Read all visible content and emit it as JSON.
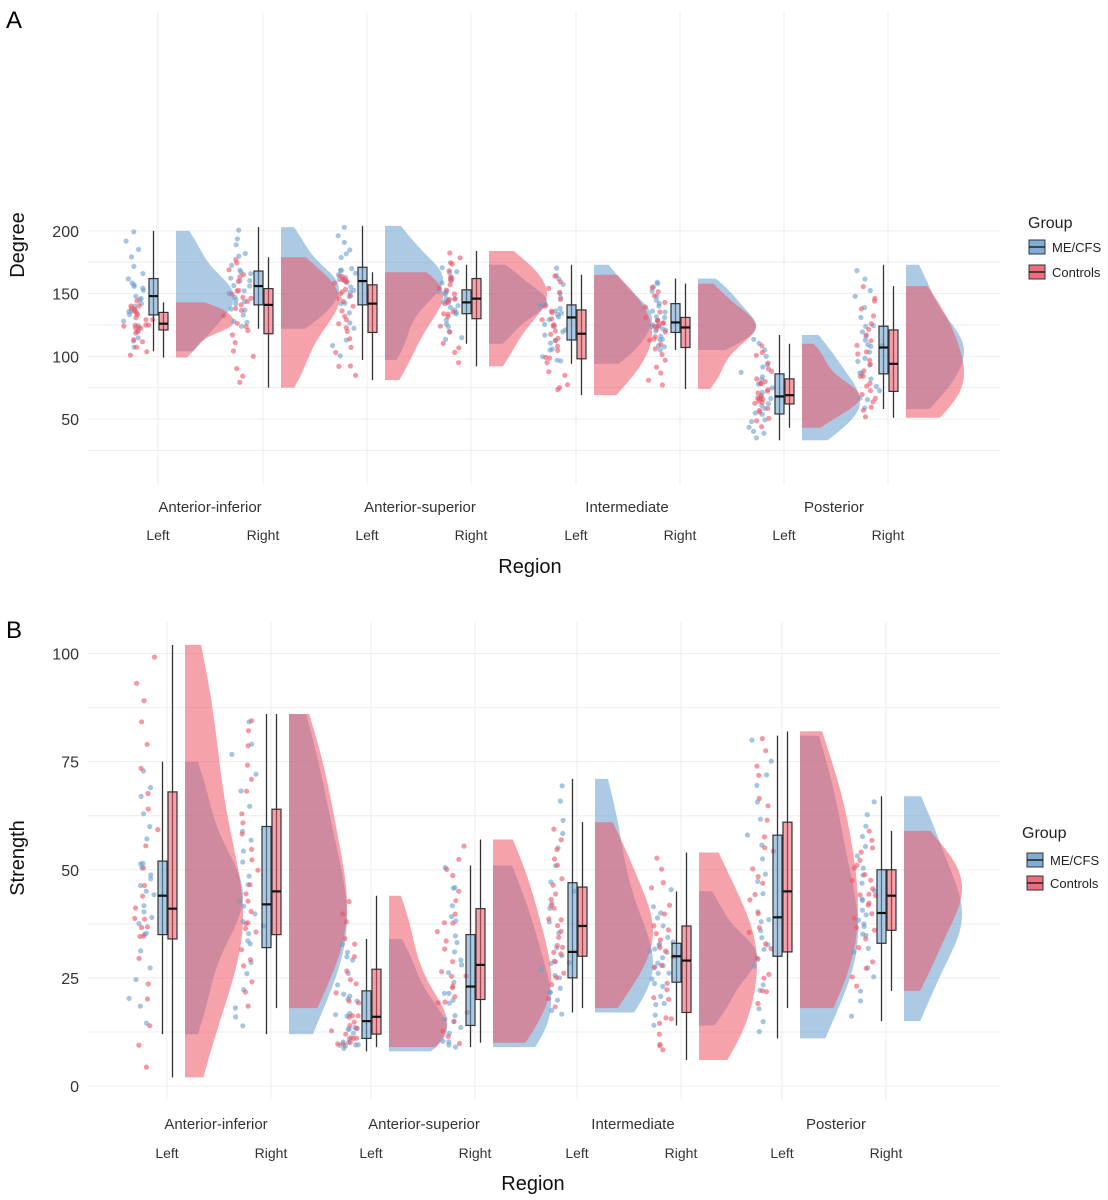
{
  "figure": {
    "legend_title": "Group",
    "group_names": [
      "ME/CFS",
      "Controls"
    ],
    "colors": {
      "ME/CFS": "#6a9fcf",
      "Controls": "#ec5566",
      "overlap": "#7a5a8c",
      "grid": "#e6e6e6"
    }
  },
  "chart_data": [
    {
      "panel_label": "A",
      "type": "raincloud",
      "ylabel": "Degree",
      "xlabel": "Region",
      "ylim": [
        30,
        210
      ],
      "yticks": [
        50,
        100,
        150,
        200
      ],
      "regions": [
        "Anterior-inferior",
        "Anterior-superior",
        "Intermediate",
        "Posterior"
      ],
      "sides": [
        "Left",
        "Right"
      ],
      "series": [
        {
          "name": "ME/CFS",
          "boxes": [
            {
              "region": "Anterior-inferior",
              "side": "Left",
              "min": 104,
              "q1": 133,
              "median": 148,
              "q3": 162,
              "max": 200
            },
            {
              "region": "Anterior-inferior",
              "side": "Right",
              "min": 122,
              "q1": 141,
              "median": 156,
              "q3": 168,
              "max": 203
            },
            {
              "region": "Anterior-superior",
              "side": "Left",
              "min": 97,
              "q1": 141,
              "median": 160,
              "q3": 171,
              "max": 204
            },
            {
              "region": "Anterior-superior",
              "side": "Right",
              "min": 110,
              "q1": 134,
              "median": 143,
              "q3": 153,
              "max": 173
            },
            {
              "region": "Intermediate",
              "side": "Left",
              "min": 94,
              "q1": 113,
              "median": 131,
              "q3": 141,
              "max": 173
            },
            {
              "region": "Intermediate",
              "side": "Right",
              "min": 105,
              "q1": 119,
              "median": 127,
              "q3": 142,
              "max": 162
            },
            {
              "region": "Posterior",
              "side": "Left",
              "min": 33,
              "q1": 54,
              "median": 68,
              "q3": 86,
              "max": 117
            },
            {
              "region": "Posterior",
              "side": "Right",
              "min": 58,
              "q1": 86,
              "median": 107,
              "q3": 124,
              "max": 173
            }
          ]
        },
        {
          "name": "Controls",
          "boxes": [
            {
              "region": "Anterior-inferior",
              "side": "Left",
              "min": 99,
              "q1": 121,
              "median": 126,
              "q3": 135,
              "max": 143
            },
            {
              "region": "Anterior-inferior",
              "side": "Right",
              "min": 75,
              "q1": 118,
              "median": 141,
              "q3": 154,
              "max": 179
            },
            {
              "region": "Anterior-superior",
              "side": "Left",
              "min": 81,
              "q1": 119,
              "median": 142,
              "q3": 157,
              "max": 167
            },
            {
              "region": "Anterior-superior",
              "side": "Right",
              "min": 92,
              "q1": 130,
              "median": 146,
              "q3": 162,
              "max": 184
            },
            {
              "region": "Intermediate",
              "side": "Left",
              "min": 69,
              "q1": 98,
              "median": 118,
              "q3": 137,
              "max": 165
            },
            {
              "region": "Intermediate",
              "side": "Right",
              "min": 74,
              "q1": 107,
              "median": 123,
              "q3": 131,
              "max": 158
            },
            {
              "region": "Posterior",
              "side": "Left",
              "min": 43,
              "q1": 62,
              "median": 69,
              "q3": 82,
              "max": 110
            },
            {
              "region": "Posterior",
              "side": "Right",
              "min": 51,
              "q1": 72,
              "median": 94,
              "q3": 121,
              "max": 156
            }
          ]
        }
      ]
    },
    {
      "panel_label": "B",
      "type": "raincloud",
      "ylabel": "Strength",
      "xlabel": "Region",
      "ylim": [
        -4,
        105
      ],
      "yticks": [
        0,
        25,
        50,
        75,
        100
      ],
      "regions": [
        "Anterior-inferior",
        "Anterior-superior",
        "Intermediate",
        "Posterior"
      ],
      "sides": [
        "Left",
        "Right"
      ],
      "series": [
        {
          "name": "ME/CFS",
          "boxes": [
            {
              "region": "Anterior-inferior",
              "side": "Left",
              "min": 12,
              "q1": 35,
              "median": 44,
              "q3": 52,
              "max": 75
            },
            {
              "region": "Anterior-inferior",
              "side": "Right",
              "min": 12,
              "q1": 32,
              "median": 42,
              "q3": 60,
              "max": 86
            },
            {
              "region": "Anterior-superior",
              "side": "Left",
              "min": 8,
              "q1": 11,
              "median": 15,
              "q3": 22,
              "max": 34
            },
            {
              "region": "Anterior-superior",
              "side": "Right",
              "min": 9,
              "q1": 14,
              "median": 23,
              "q3": 35,
              "max": 51
            },
            {
              "region": "Intermediate",
              "side": "Left",
              "min": 17,
              "q1": 25,
              "median": 31,
              "q3": 47,
              "max": 71
            },
            {
              "region": "Intermediate",
              "side": "Right",
              "min": 14,
              "q1": 24,
              "median": 30,
              "q3": 33,
              "max": 45
            },
            {
              "region": "Posterior",
              "side": "Left",
              "min": 11,
              "q1": 30,
              "median": 39,
              "q3": 58,
              "max": 81
            },
            {
              "region": "Posterior",
              "side": "Right",
              "min": 15,
              "q1": 33,
              "median": 40,
              "q3": 50,
              "max": 67
            }
          ]
        },
        {
          "name": "Controls",
          "boxes": [
            {
              "region": "Anterior-inferior",
              "side": "Left",
              "min": 2,
              "q1": 34,
              "median": 41,
              "q3": 68,
              "max": 102
            },
            {
              "region": "Anterior-inferior",
              "side": "Right",
              "min": 18,
              "q1": 35,
              "median": 45,
              "q3": 64,
              "max": 86
            },
            {
              "region": "Anterior-superior",
              "side": "Left",
              "min": 9,
              "q1": 12,
              "median": 16,
              "q3": 27,
              "max": 44
            },
            {
              "region": "Anterior-superior",
              "side": "Right",
              "min": 10,
              "q1": 20,
              "median": 28,
              "q3": 41,
              "max": 57
            },
            {
              "region": "Intermediate",
              "side": "Left",
              "min": 18,
              "q1": 30,
              "median": 37,
              "q3": 46,
              "max": 61
            },
            {
              "region": "Intermediate",
              "side": "Right",
              "min": 6,
              "q1": 17,
              "median": 29,
              "q3": 37,
              "max": 54
            },
            {
              "region": "Posterior",
              "side": "Left",
              "min": 18,
              "q1": 31,
              "median": 45,
              "q3": 61,
              "max": 82
            },
            {
              "region": "Posterior",
              "side": "Right",
              "min": 22,
              "q1": 36,
              "median": 44,
              "q3": 50,
              "max": 59
            }
          ]
        }
      ]
    }
  ]
}
